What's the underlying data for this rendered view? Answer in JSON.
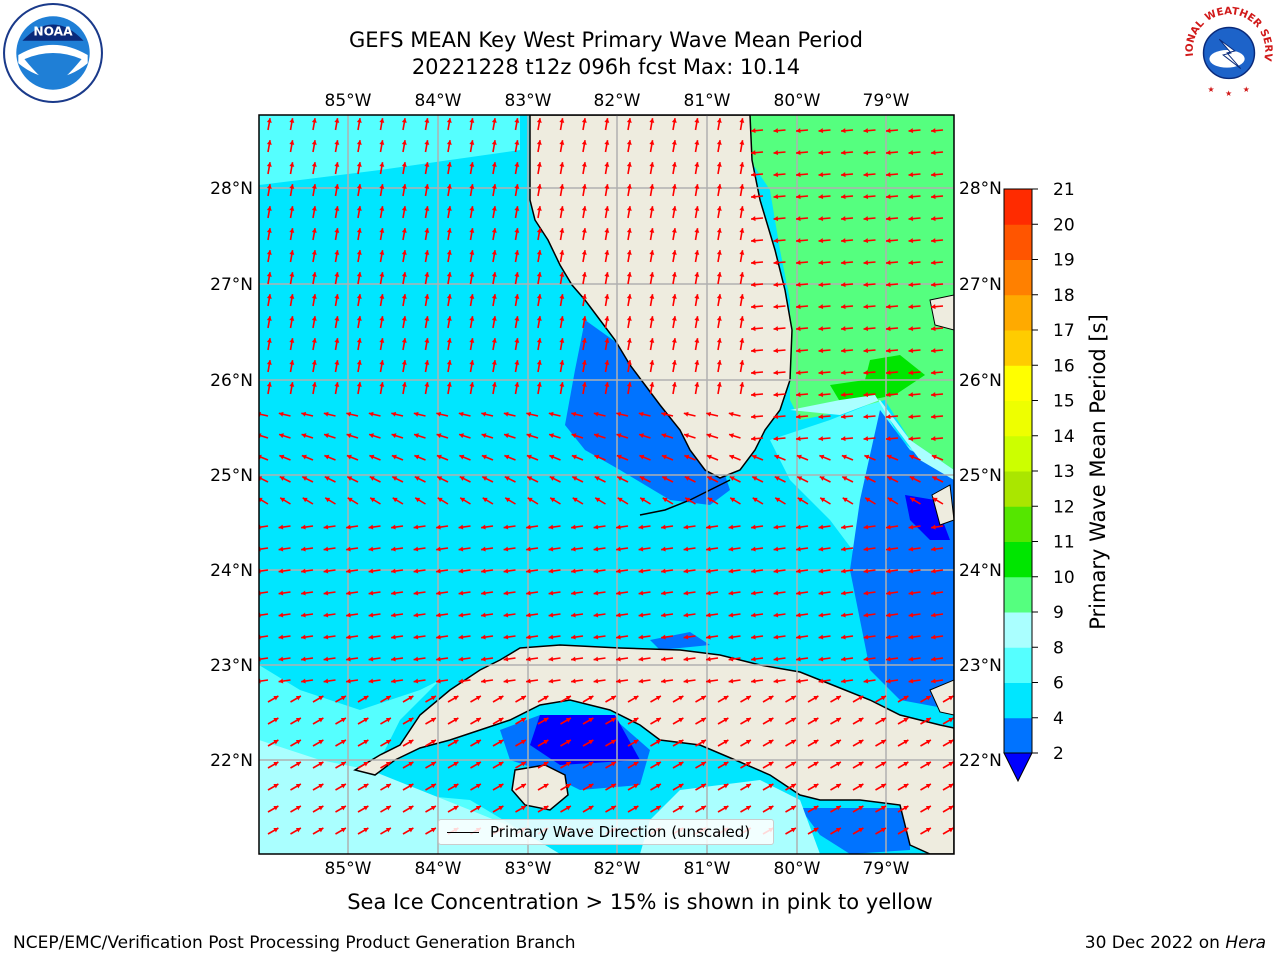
{
  "title_line1": "GEFS MEAN Key West Primary Wave Mean Period",
  "title_line2": "20221228 t12z 096h fcst   Max: 10.14",
  "caption": "Sea Ice Concentration > 15% is shown in pink to yellow",
  "footer_left": "NCEP/EMC/Verification Post Processing Product Generation Branch",
  "footer_right_date": "30 Dec 2022 on ",
  "footer_right_machine": "Hera",
  "legend_label": "Primary Wave Direction (unscaled)",
  "logos": {
    "left": "NOAA",
    "right": "NATIONAL WEATHER SERVICE"
  },
  "map": {
    "lon_ticks": [
      "85°W",
      "84°W",
      "83°W",
      "82°W",
      "81°W",
      "80°W",
      "79°W"
    ],
    "lat_ticks": [
      "28°N",
      "27°N",
      "26°N",
      "25°N",
      "24°N",
      "23°N",
      "22°N"
    ],
    "arrow_color": "#ff0000",
    "land_color": "#eeecdf",
    "gridline_color": "#b0b0b0"
  },
  "colorbar": {
    "label": "Primary Wave Mean Period [s]",
    "ticks": [
      "2",
      "4",
      "6",
      "8",
      "9",
      "10",
      "11",
      "12",
      "13",
      "14",
      "15",
      "16",
      "17",
      "18",
      "19",
      "20",
      "21"
    ],
    "colors": [
      "#0000ff",
      "#0073ff",
      "#00e6ff",
      "#55ffff",
      "#aaffff",
      "#55ff7f",
      "#00e600",
      "#55e600",
      "#aae600",
      "#ccff00",
      "#eeff00",
      "#ffff00",
      "#ffcc00",
      "#ffaa00",
      "#ff8000",
      "#ff5500",
      "#ff2b00",
      "#ff0000"
    ],
    "under_color": "#0000ff"
  }
}
